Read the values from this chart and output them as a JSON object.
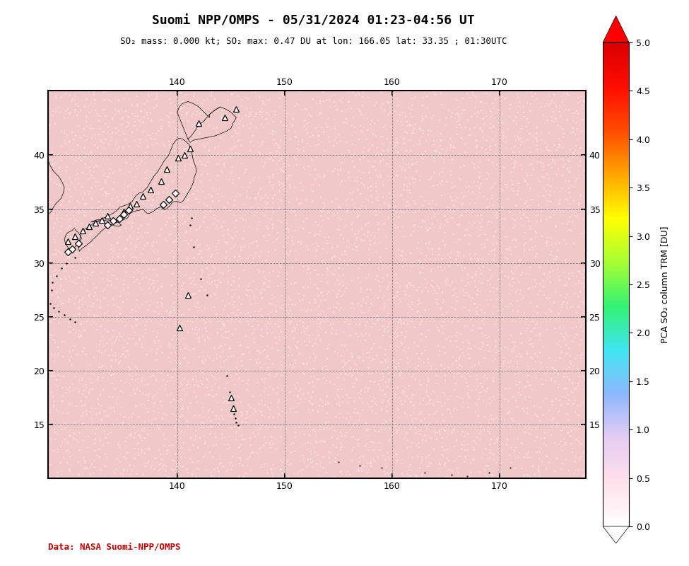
{
  "title": "Suomi NPP/OMPS - 05/31/2024 01:23-04:56 UT",
  "subtitle": "SO₂ mass: 0.000 kt; SO₂ max: 0.47 DU at lon: 166.05 lat: 33.35 ; 01:30UTC",
  "data_credit": "Data: NASA Suomi-NPP/OMPS",
  "colorbar_label": "PCA SO₂ column TRM [DU]",
  "lon_min": 128,
  "lon_max": 178,
  "lat_min": 10,
  "lat_max": 46,
  "lon_ticks": [
    140,
    150,
    160,
    170
  ],
  "lat_ticks": [
    15,
    20,
    25,
    30,
    35,
    40
  ],
  "vmin": 0.0,
  "vmax": 5.0,
  "colorbar_ticks": [
    0.0,
    0.5,
    1.0,
    1.5,
    2.0,
    2.5,
    3.0,
    3.5,
    4.0,
    4.5,
    5.0
  ],
  "background_color": "#f0c8c8",
  "title_fontsize": 13,
  "subtitle_fontsize": 9,
  "credit_fontsize": 9,
  "credit_color": "#cc0000",
  "noise_seed": 42
}
